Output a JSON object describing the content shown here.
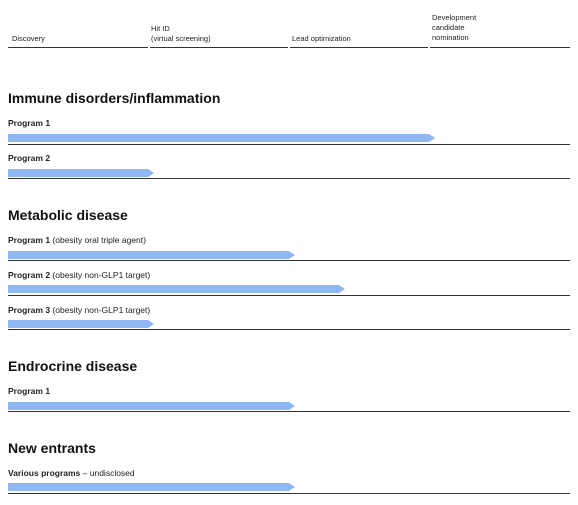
{
  "colors": {
    "bar": "#8fb8f2",
    "rule": "#333333"
  },
  "stages": [
    {
      "label": "Discovery"
    },
    {
      "label": "Hit ID\n(virtual screening)"
    },
    {
      "label": "Lead optimization"
    },
    {
      "label": "Development\ncandidate\nnomination"
    }
  ],
  "sections": [
    {
      "title": "Immune disorders/inflammation",
      "programs": [
        {
          "name": "Program 1",
          "detail": "",
          "progress": 0.76
        },
        {
          "name": "Program 2",
          "detail": "",
          "progress": 0.26
        }
      ]
    },
    {
      "title": "Metabolic disease",
      "programs": [
        {
          "name": "Program 1",
          "detail": "(obesity oral triple agent)",
          "progress": 0.51
        },
        {
          "name": "Program 2",
          "detail": "(obesity non-GLP1 target)",
          "progress": 0.6
        },
        {
          "name": "Program 3",
          "detail": "(obesity non-GLP1 target)",
          "progress": 0.26
        }
      ]
    },
    {
      "title": "Endrocrine disease",
      "programs": [
        {
          "name": "Program 1",
          "detail": "",
          "progress": 0.51
        }
      ]
    },
    {
      "title": "New entrants",
      "programs": [
        {
          "name": "Various programs",
          "detail": "– undisclosed",
          "progress": 0.51
        }
      ]
    }
  ]
}
